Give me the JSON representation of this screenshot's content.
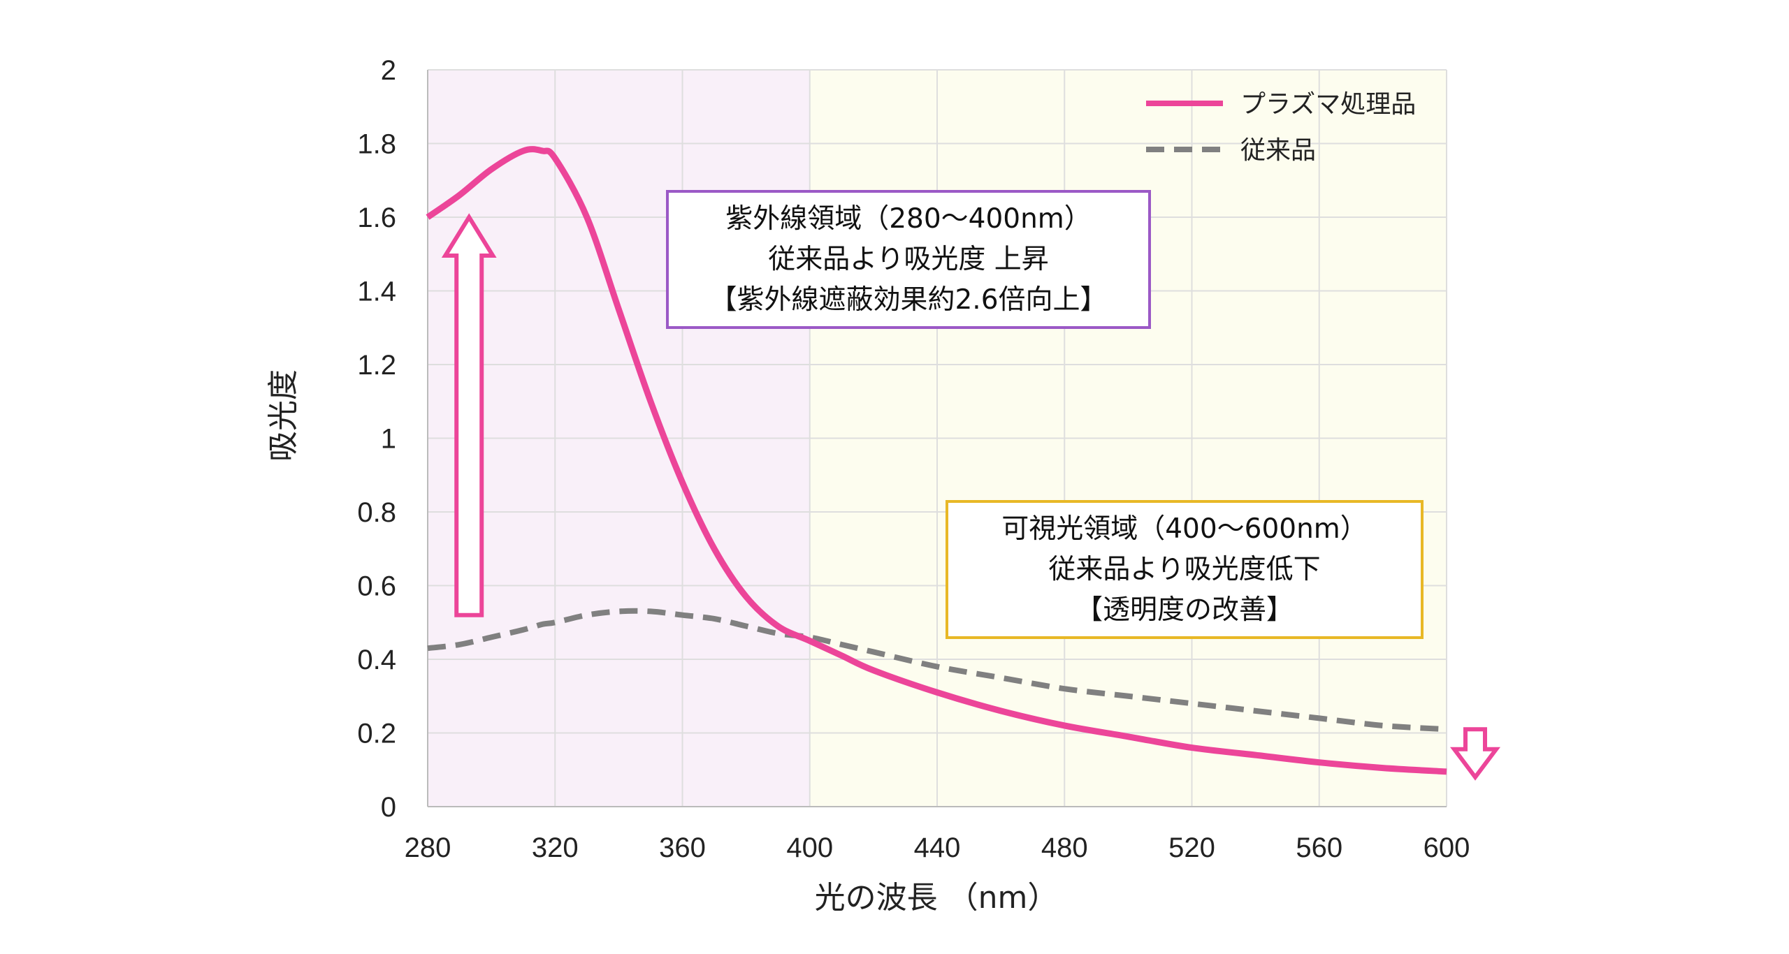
{
  "chart_data": {
    "type": "line",
    "title": "",
    "xlabel": "光の波長 （nm）",
    "ylabel": "吸光度",
    "xlim": [
      280,
      600
    ],
    "ylim": [
      0,
      2
    ],
    "x_ticks": [
      280,
      320,
      360,
      400,
      440,
      480,
      520,
      560,
      600
    ],
    "y_ticks": [
      0,
      0.2,
      0.4,
      0.6,
      0.8,
      1,
      1.2,
      1.4,
      1.6,
      1.8,
      2
    ],
    "grid": true,
    "legend_position": "top-right",
    "regions": [
      {
        "x_from": 280,
        "x_to": 400,
        "color": "#f9f0f9"
      },
      {
        "x_from": 400,
        "x_to": 600,
        "color": "#fdfdef"
      }
    ],
    "x": [
      280,
      290,
      300,
      310,
      316,
      320,
      330,
      340,
      350,
      360,
      370,
      380,
      390,
      400,
      410,
      420,
      440,
      460,
      480,
      500,
      520,
      540,
      560,
      580,
      600
    ],
    "series": [
      {
        "name": "プラズマ処理品",
        "color": "#ec4599",
        "style": "solid",
        "values": [
          1.6,
          1.66,
          1.73,
          1.78,
          1.78,
          1.76,
          1.6,
          1.35,
          1.1,
          0.88,
          0.7,
          0.57,
          0.49,
          0.45,
          0.41,
          0.37,
          0.31,
          0.26,
          0.22,
          0.19,
          0.16,
          0.14,
          0.12,
          0.105,
          0.095
        ]
      },
      {
        "name": "従来品",
        "color": "#808080",
        "style": "dashed",
        "values": [
          0.43,
          0.44,
          0.46,
          0.48,
          0.495,
          0.5,
          0.52,
          0.53,
          0.53,
          0.52,
          0.51,
          0.49,
          0.47,
          0.46,
          0.44,
          0.42,
          0.38,
          0.35,
          0.32,
          0.3,
          0.28,
          0.26,
          0.24,
          0.22,
          0.21
        ]
      }
    ],
    "annotations": [
      {
        "id": "uv",
        "border_color": "#9b59c6",
        "lines": [
          "紫外線領域（280～400nm）",
          "従来品より吸光度 上昇",
          "【紫外線遮蔽効果約2.6倍向上】"
        ]
      },
      {
        "id": "visible",
        "border_color": "#e8b826",
        "lines": [
          "可視光領域（400～600nm）",
          "従来品より吸光度低下",
          "【透明度の改善】"
        ]
      }
    ],
    "arrows": [
      {
        "id": "up-arrow",
        "direction": "up",
        "color": "#ec4599",
        "x": 293,
        "y_from": 0.52,
        "y_to": 1.6
      },
      {
        "id": "down-arrow",
        "direction": "down",
        "color": "#ec4599",
        "x": 609,
        "y_from": 0.21,
        "y_to": 0.08
      }
    ]
  }
}
